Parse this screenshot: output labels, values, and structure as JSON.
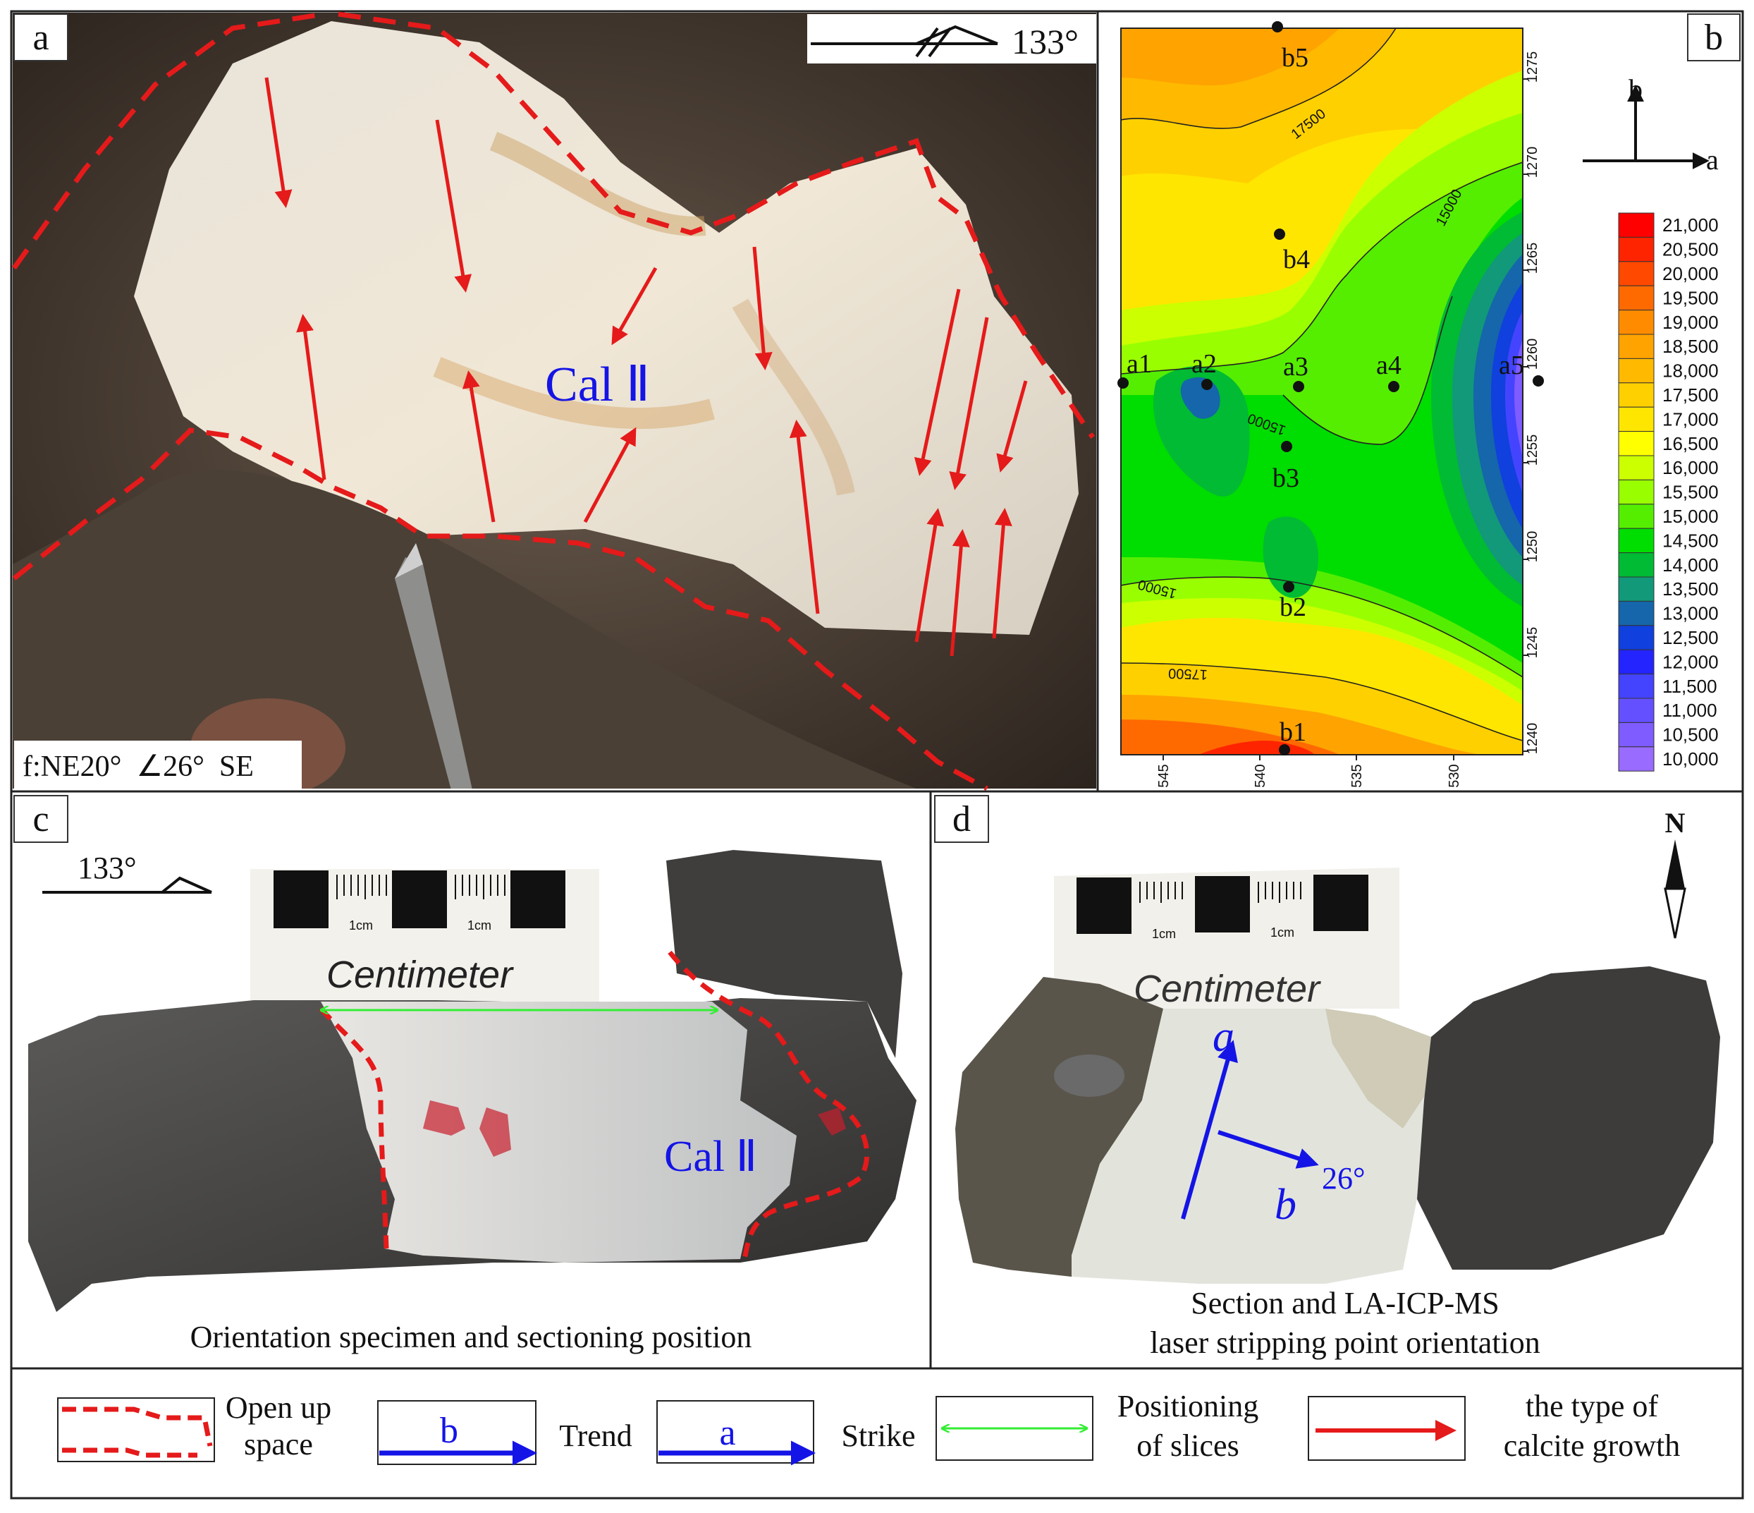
{
  "panels": {
    "a": {
      "label": "a",
      "strike": "133°",
      "mineral": "Cal Ⅱ",
      "fault": "f:NE20°  ∠26°  SE"
    },
    "b": {
      "label": "b",
      "axis_a": "a",
      "axis_b": "b",
      "points": [
        "a1",
        "a2",
        "a3",
        "a4",
        "a5",
        "b1",
        "b2",
        "b3",
        "b4",
        "b5"
      ],
      "contour_labels": [
        "17500",
        "15000",
        "15000",
        "15000",
        "17500"
      ],
      "x_ticks": [
        "545",
        "540",
        "535",
        "530"
      ],
      "y_ticks": [
        "1275",
        "1270",
        "1265",
        "1260",
        "1255",
        "1250",
        "1245",
        "1240"
      ],
      "legend_values": [
        "21,000",
        "20,500",
        "20,000",
        "19,500",
        "19,000",
        "18,500",
        "18,000",
        "17,500",
        "17,000",
        "16,500",
        "16,000",
        "15,500",
        "15,000",
        "14,500",
        "14,000",
        "13,500",
        "13,000",
        "12,500",
        "12,000",
        "11,500",
        "11,000",
        "10,500",
        "10,000"
      ],
      "legend_colors": [
        "#ff0000",
        "#ff2400",
        "#ff4800",
        "#ff6a00",
        "#ff8c00",
        "#ffa300",
        "#ffba00",
        "#ffd000",
        "#ffe600",
        "#ffff00",
        "#ccff00",
        "#99ff00",
        "#55ee00",
        "#00dd00",
        "#00bb33",
        "#11997a",
        "#1566aa",
        "#1040dd",
        "#2424ff",
        "#4444ff",
        "#6450ff",
        "#7f5cff",
        "#9a6bff"
      ]
    },
    "c": {
      "label": "c",
      "strike": "133°",
      "scale_text": "Centimeter",
      "scale_unit": "1cm",
      "mineral": "Cal Ⅱ",
      "caption": "Orientation specimen and sectioning position"
    },
    "d": {
      "label": "d",
      "north": "N",
      "scale_text": "Centimeter",
      "scale_unit": "1cm",
      "axis_a": "a",
      "axis_b": "b",
      "angle": "26°",
      "caption_line1": "Section and LA-ICP-MS",
      "caption_line2": "laser stripping point orientation"
    }
  },
  "legend": {
    "open_space": [
      "Open up",
      "space"
    ],
    "trend_box": "b",
    "trend": "Trend",
    "strike_box": "a",
    "strike": "Strike",
    "slices": [
      "Positioning",
      "of slices"
    ],
    "growth": [
      "the type of",
      "calcite growth"
    ]
  },
  "colors": {
    "red": "#e51a1a",
    "blue": "#1414e6",
    "green": "#33ee33"
  }
}
